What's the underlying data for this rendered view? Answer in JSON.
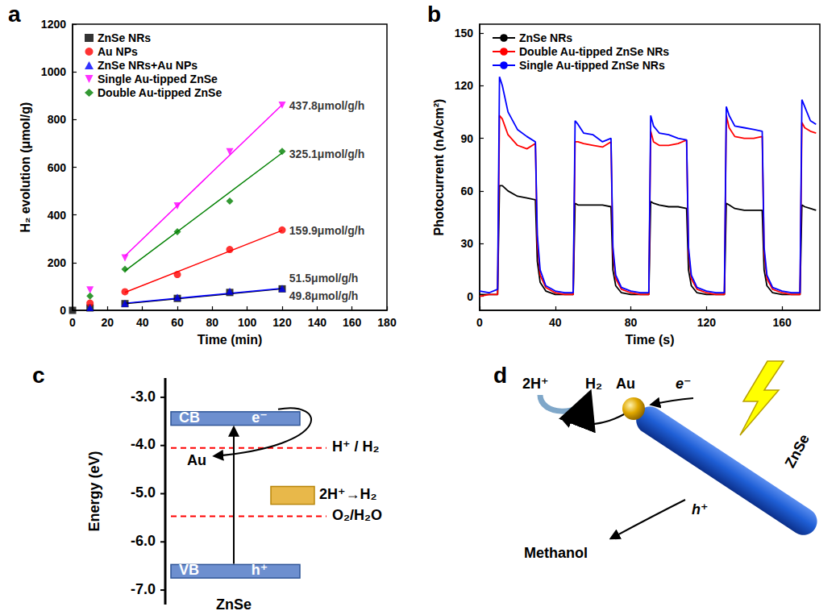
{
  "chart_data": [
    {
      "panel_label": "a",
      "type": "scatter",
      "x_label": "Time (min)",
      "y_label": "H₂ evolution (μmol/g)",
      "xlim": [
        0,
        180
      ],
      "xticks": [
        0,
        20,
        40,
        60,
        80,
        100,
        120,
        140,
        160,
        180
      ],
      "ylim": [
        0,
        1200
      ],
      "yticks": [
        0,
        200,
        400,
        600,
        800,
        1000,
        1200
      ],
      "grid": false,
      "legend": "upper left",
      "series": [
        {
          "name": "ZnSe NRs",
          "color": "#000000",
          "marker": "square",
          "x": [
            0,
            10,
            30,
            60,
            90,
            120
          ],
          "values": [
            0,
            10,
            28,
            50,
            75,
            90
          ],
          "fit": {
            "x": [
              30,
              120
            ],
            "values": [
              28,
              90
            ]
          }
        },
        {
          "name": "Au NPs",
          "color": "#ff0000",
          "marker": "circle",
          "x": [
            10,
            30,
            60,
            90,
            120
          ],
          "values": [
            30,
            78,
            150,
            255,
            337
          ],
          "fit": {
            "x": [
              30,
              120
            ],
            "values": [
              75,
              335
            ]
          }
        },
        {
          "name": "ZnSe NRs+Au NPs",
          "color": "#0000ff",
          "marker": "triangle",
          "x": [
            10,
            30,
            60,
            90,
            120
          ],
          "values": [
            12,
            30,
            55,
            80,
            92
          ],
          "fit": {
            "x": [
              30,
              120
            ],
            "values": [
              30,
              92
            ]
          }
        },
        {
          "name": "Single Au-tipped ZnSe",
          "color": "#ff00ff",
          "marker": "triangle_down",
          "x": [
            10,
            30,
            60,
            90,
            120
          ],
          "values": [
            85,
            220,
            438,
            665,
            860
          ],
          "fit": {
            "x": [
              30,
              120
            ],
            "values": [
              228,
              862
            ]
          }
        },
        {
          "name": "Double Au-tipped ZnSe",
          "color": "#008000",
          "marker": "diamond",
          "x": [
            10,
            30,
            60,
            90,
            120
          ],
          "values": [
            60,
            172,
            330,
            458,
            667
          ],
          "fit": {
            "x": [
              30,
              120
            ],
            "values": [
              165,
              660
            ]
          }
        }
      ],
      "annotations": [
        {
          "text": "437.8μmol/g/h",
          "x": 122,
          "y": 860
        },
        {
          "text": "325.1μmol/g/h",
          "x": 122,
          "y": 655
        },
        {
          "text": "159.9μmol/g/h",
          "x": 122,
          "y": 335
        },
        {
          "text": "51.5μmol/g/h",
          "x": 122,
          "y": 135
        },
        {
          "text": "49.8μmol/g/h",
          "x": 122,
          "y": 62
        }
      ]
    },
    {
      "panel_label": "b",
      "type": "line",
      "x_label": "Time (s)",
      "y_label": "Photocurrent (nA/cm²)",
      "xlim": [
        0,
        180
      ],
      "xticks": [
        0,
        40,
        80,
        120,
        160
      ],
      "ylim": [
        -8,
        155
      ],
      "yticks": [
        0,
        30,
        60,
        90,
        120,
        150
      ],
      "grid": false,
      "legend": "upper left",
      "x": [
        0,
        5,
        9.5,
        10.5,
        12,
        15,
        20,
        25,
        29.5,
        30.5,
        32,
        35,
        40,
        45,
        49.5,
        50.5,
        52,
        55,
        60,
        65,
        69.5,
        70.5,
        72,
        75,
        80,
        85,
        89.5,
        90.5,
        92,
        95,
        100,
        105,
        109.5,
        110.5,
        112,
        115,
        120,
        125,
        129.5,
        130.5,
        132,
        135,
        140,
        145,
        149.5,
        150.5,
        152,
        155,
        160,
        165,
        169.5,
        170.5,
        172,
        175,
        178
      ],
      "series": [
        {
          "name": "ZnSe NRs",
          "color": "#000000",
          "values": [
            1,
            1,
            1,
            63,
            63,
            60,
            57,
            56,
            55,
            20,
            8,
            3,
            1,
            1,
            1,
            53,
            52,
            52,
            52,
            52,
            51,
            15,
            6,
            2,
            1,
            1,
            1,
            54,
            53,
            52,
            51,
            51,
            50,
            15,
            6,
            2,
            1,
            1,
            1,
            53,
            52,
            50,
            49,
            49,
            49,
            15,
            6,
            2,
            1,
            1,
            1,
            52,
            51,
            50,
            49
          ]
        },
        {
          "name": "Double Au-tipped ZnSe NRs",
          "color": "#ff0000",
          "values": [
            0,
            1,
            1,
            103,
            101,
            92,
            86,
            84,
            87,
            30,
            12,
            5,
            2,
            1,
            1,
            88,
            88,
            87,
            86,
            85,
            88,
            25,
            10,
            4,
            2,
            1,
            1,
            94,
            88,
            86,
            86,
            87,
            89,
            25,
            10,
            4,
            2,
            1,
            1,
            103,
            96,
            91,
            90,
            90,
            91,
            25,
            10,
            4,
            2,
            1,
            1,
            99,
            96,
            94,
            93
          ]
        },
        {
          "name": "Single Au-tipped ZnSe NRs",
          "color": "#0000ff",
          "values": [
            3,
            2,
            4,
            125,
            120,
            105,
            95,
            91,
            88,
            35,
            15,
            6,
            3,
            2,
            2,
            100,
            98,
            93,
            92,
            88,
            90,
            28,
            12,
            5,
            3,
            2,
            2,
            103,
            97,
            93,
            92,
            90,
            89,
            28,
            12,
            5,
            3,
            2,
            2,
            108,
            103,
            97,
            96,
            95,
            94,
            28,
            12,
            5,
            3,
            2,
            2,
            112,
            108,
            100,
            98
          ]
        }
      ]
    }
  ],
  "diagram_c": {
    "panel_label": "c",
    "y_label": "Energy (eV)",
    "ylim": [
      -7.3,
      -2.6
    ],
    "yticks": [
      {
        "value": -3,
        "label": "-3.0"
      },
      {
        "value": -4,
        "label": "-4.0"
      },
      {
        "value": -5,
        "label": "-5.0"
      },
      {
        "value": -6,
        "label": "-6.0"
      },
      {
        "value": -7,
        "label": "-7.0"
      }
    ],
    "semiconductor": "ZnSe",
    "bands": [
      {
        "label": "CB",
        "carrier": "e⁻",
        "top": -3.3,
        "bottom": -3.58
      },
      {
        "label": "VB",
        "carrier": "h⁺",
        "top": -6.47,
        "bottom": -6.75
      }
    ],
    "levels": [
      {
        "label": "H⁺ / H₂",
        "energy": -4.05
      },
      {
        "label": "O₂/H₂O",
        "energy": -5.47
      }
    ],
    "metal": {
      "label": "Au",
      "reaction": "2H⁺→H₂",
      "top": -4.85,
      "bottom": -5.22
    }
  },
  "diagram_d": {
    "panel_label": "d",
    "reactant": "2H⁺",
    "product": "H₂",
    "metal": "Au",
    "electron": "e⁻",
    "semiconductor": "ZnSe",
    "hole": "h⁺",
    "donor": "Methanol"
  }
}
